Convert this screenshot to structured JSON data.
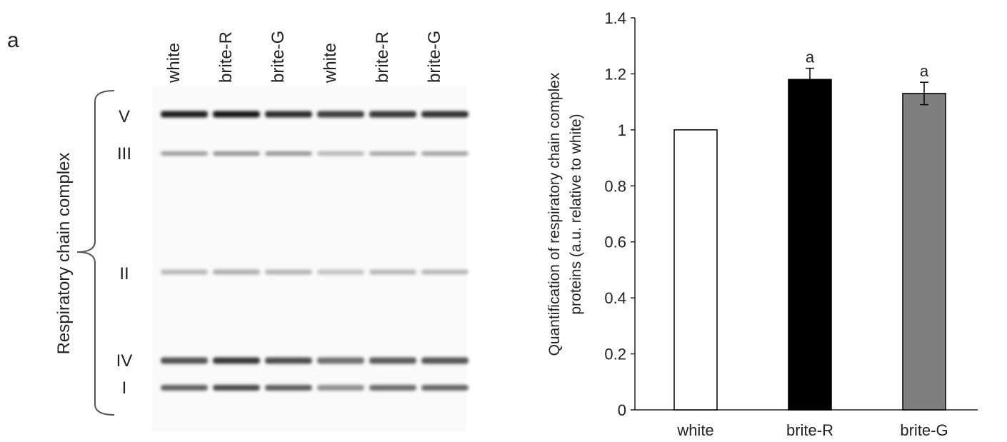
{
  "panel_label": "a",
  "blot": {
    "ylabel": "Respiratory chain complex",
    "lanes": [
      "white",
      "brite-R",
      "brite-G",
      "white",
      "brite-R",
      "brite-G"
    ],
    "bands": [
      {
        "label": "V",
        "relative_intensity": [
          0.95,
          1.0,
          0.9,
          0.8,
          0.82,
          0.85
        ]
      },
      {
        "label": "III",
        "relative_intensity": [
          0.35,
          0.4,
          0.38,
          0.22,
          0.3,
          0.32
        ]
      },
      {
        "label": "II",
        "relative_intensity": [
          0.2,
          0.25,
          0.22,
          0.15,
          0.2,
          0.2
        ]
      },
      {
        "label": "IV",
        "relative_intensity": [
          0.7,
          0.82,
          0.72,
          0.55,
          0.65,
          0.68
        ]
      },
      {
        "label": "I",
        "relative_intensity": [
          0.62,
          0.75,
          0.65,
          0.4,
          0.58,
          0.6
        ]
      }
    ]
  },
  "chart_data": {
    "type": "bar",
    "title": "",
    "xlabel": "",
    "ylabel": "Quantification of respiratory chain complex proteins (a.u. relative to white)",
    "ylabel_lines": [
      "Quantification of respiratory chain complex",
      "proteins (a.u. relative to white)"
    ],
    "categories": [
      "white",
      "brite-R",
      "brite-G"
    ],
    "values": [
      1.0,
      1.18,
      1.13
    ],
    "errors": [
      0,
      0.04,
      0.04
    ],
    "annotations": [
      "",
      "a",
      "a"
    ],
    "colors": [
      "#ffffff",
      "#000000",
      "#7f7f7f"
    ],
    "ylim": [
      0,
      1.4
    ],
    "yticks": [
      0,
      0.2,
      0.4,
      0.6,
      0.8,
      1,
      1.2,
      1.4
    ],
    "ytick_labels": [
      "0",
      "0.2",
      "0.4",
      "0.6",
      "0.8",
      "1",
      "1.2",
      "1.4"
    ],
    "grid": false,
    "legend": "none"
  }
}
